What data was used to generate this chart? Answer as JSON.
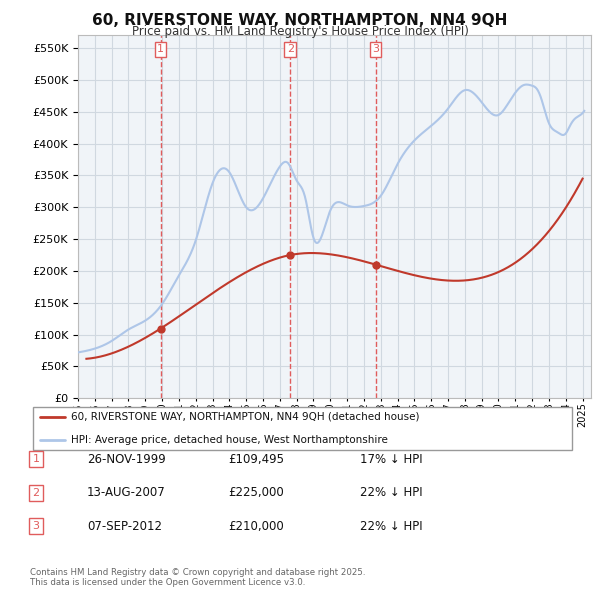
{
  "title": "60, RIVERSTONE WAY, NORTHAMPTON, NN4 9QH",
  "subtitle": "Price paid vs. HM Land Registry's House Price Index (HPI)",
  "ylim": [
    0,
    570000
  ],
  "yticks": [
    0,
    50000,
    100000,
    150000,
    200000,
    250000,
    300000,
    350000,
    400000,
    450000,
    500000,
    550000
  ],
  "xlim_start": 1995.0,
  "xlim_end": 2025.5,
  "hpi_color": "#aec6e8",
  "price_color": "#c0392b",
  "marker_color": "#c0392b",
  "vline_color": "#e05c5c",
  "background_color": "#f0f4f8",
  "grid_color": "#d0d8e0",
  "sale_dates": [
    1999.91,
    2007.62,
    2012.69
  ],
  "sale_prices": [
    109495,
    225000,
    210000
  ],
  "sale_labels": [
    "1",
    "2",
    "3"
  ],
  "legend_entries": [
    "60, RIVERSTONE WAY, NORTHAMPTON, NN4 9QH (detached house)",
    "HPI: Average price, detached house, West Northamptonshire"
  ],
  "table_rows": [
    [
      "1",
      "26-NOV-1999",
      "£109,495",
      "17% ↓ HPI"
    ],
    [
      "2",
      "13-AUG-2007",
      "£225,000",
      "22% ↓ HPI"
    ],
    [
      "3",
      "07-SEP-2012",
      "£210,000",
      "22% ↓ HPI"
    ]
  ],
  "footnote": "Contains HM Land Registry data © Crown copyright and database right 2025.\nThis data is licensed under the Open Government Licence v3.0.",
  "hpi_key_x": [
    1995.0,
    1996.0,
    1997.0,
    1998.0,
    1999.0,
    2000.0,
    2001.0,
    2002.0,
    2003.0,
    2004.0,
    2005.0,
    2006.0,
    2007.0,
    2007.5,
    2008.0,
    2008.5,
    2009.0,
    2010.0,
    2011.0,
    2012.0,
    2013.0,
    2014.0,
    2015.0,
    2016.0,
    2017.0,
    2018.0,
    2019.0,
    2020.0,
    2020.5,
    2021.0,
    2021.5,
    2022.0,
    2022.25,
    2022.5,
    2023.0,
    2023.5,
    2024.0,
    2024.25,
    2024.5,
    2024.75,
    2025.0
  ],
  "hpi_key_y": [
    72000,
    78000,
    90000,
    108000,
    122000,
    148000,
    193000,
    248000,
    338000,
    355000,
    300000,
    314000,
    364000,
    369000,
    342000,
    316000,
    252000,
    295000,
    303000,
    302000,
    318000,
    368000,
    405000,
    428000,
    455000,
    484000,
    465000,
    445000,
    460000,
    480000,
    492000,
    491000,
    487000,
    474000,
    432000,
    418000,
    416000,
    428000,
    438000,
    443000,
    448000
  ],
  "price_key_x": [
    1995.5,
    1999.91,
    2007.62,
    2012.69,
    2025.0
  ],
  "price_key_y": [
    62000,
    109495,
    225000,
    210000,
    345000
  ]
}
